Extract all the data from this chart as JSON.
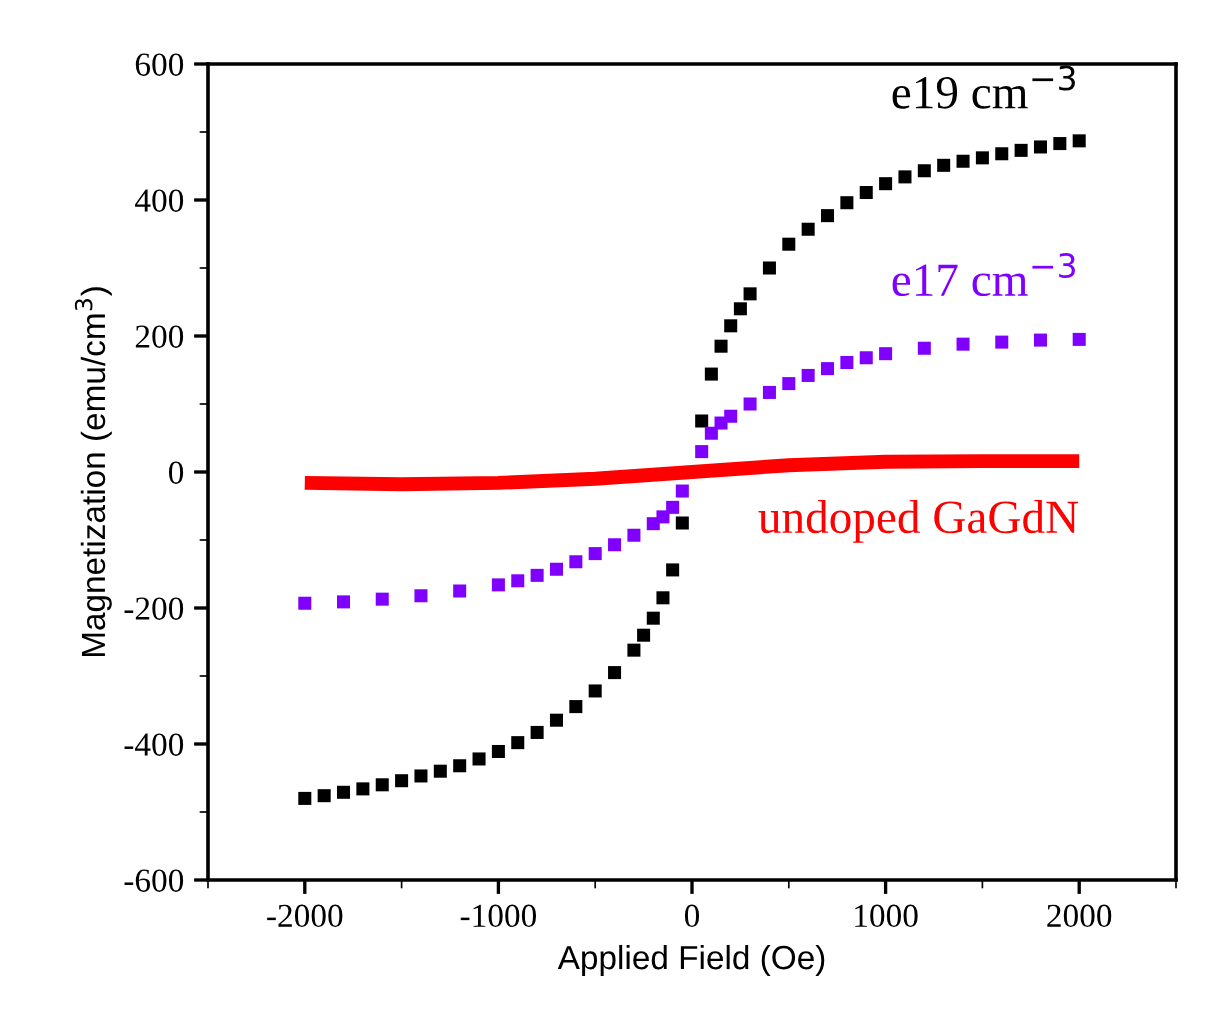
{
  "chart_data": {
    "type": "scatter",
    "xlabel": "Applied Field (Oe)",
    "ylabel": "Magnetization (emu/cm$^{3}$)",
    "xlim": [
      -2500,
      2500
    ],
    "xticks": [
      -2000,
      -1000,
      0,
      1000,
      2000
    ],
    "ylim": [
      -600,
      600
    ],
    "yticks": [
      -600,
      -400,
      -200,
      0,
      200,
      400,
      600
    ],
    "grid": false,
    "series": [
      {
        "name": "e19 cm$^{−3}$",
        "marker": "square",
        "color": "#000000",
        "x": [
          -2000,
          -1900,
          -1800,
          -1700,
          -1600,
          -1500,
          -1400,
          -1300,
          -1200,
          -1100,
          -1000,
          -900,
          -800,
          -700,
          -600,
          -500,
          -400,
          -300,
          -250,
          -200,
          -150,
          -100,
          -50,
          50,
          100,
          150,
          200,
          250,
          300,
          400,
          500,
          600,
          700,
          800,
          900,
          1000,
          1100,
          1200,
          1300,
          1400,
          1500,
          1600,
          1700,
          1800,
          1900,
          2000
        ],
        "values": [
          -480,
          -476,
          -471,
          -466,
          -460,
          -454,
          -447,
          -440,
          -432,
          -422,
          -411,
          -398,
          -383,
          -365,
          -345,
          -322,
          -295,
          -262,
          -240,
          -215,
          -185,
          -144,
          -75,
          75,
          144,
          185,
          215,
          240,
          262,
          300,
          335,
          357,
          377,
          396,
          411,
          424,
          434,
          443,
          451,
          457,
          462,
          468,
          473,
          478,
          483,
          487
        ]
      },
      {
        "name": "e17 cm$^{−3}$",
        "marker": "square",
        "color": "#8000ff",
        "x": [
          -2000,
          -1800,
          -1600,
          -1400,
          -1200,
          -1000,
          -900,
          -800,
          -700,
          -600,
          -500,
          -400,
          -300,
          -200,
          -150,
          -100,
          -50,
          50,
          100,
          150,
          200,
          300,
          400,
          500,
          600,
          700,
          800,
          900,
          1000,
          1200,
          1400,
          1600,
          1800,
          2000
        ],
        "values": [
          -193,
          -191,
          -187,
          -182,
          -175,
          -166,
          -160,
          -152,
          -143,
          -132,
          -120,
          -107,
          -93,
          -76,
          -66,
          -52,
          -28,
          30,
          57,
          72,
          82,
          100,
          117,
          130,
          142,
          152,
          161,
          168,
          174,
          182,
          188,
          191,
          194,
          195
        ]
      },
      {
        "name": "undoped GaGdN",
        "type": "line",
        "color": "#ff0000",
        "x": [
          -2000,
          -1500,
          -1000,
          -500,
          0,
          500,
          1000,
          1500,
          2000
        ],
        "values": [
          -16,
          -18,
          -16,
          -10,
          0,
          10,
          15,
          16,
          16
        ]
      }
    ]
  }
}
